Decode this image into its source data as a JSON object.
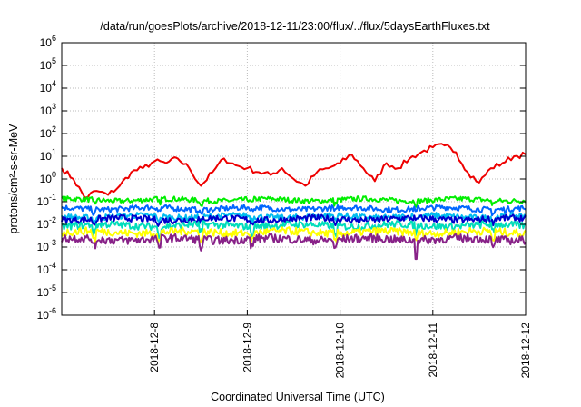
{
  "chart_data": {
    "type": "line",
    "title": "/data/run/goesPlots/archive/2018-12-11/23:00/flux/../flux/5daysEarthFluxes.txt",
    "xlabel": "Coordinated Universal Time (UTC)",
    "ylabel": "protons/cm²-s-sr-MeV",
    "yscale": "log",
    "ylim": [
      1e-06,
      1000000.0
    ],
    "xlim": [
      "2018-12-07",
      "2018-12-12"
    ],
    "grid": true,
    "y_ticks": [
      {
        "base": "10",
        "exp": "-6"
      },
      {
        "base": "10",
        "exp": "-5"
      },
      {
        "base": "10",
        "exp": "-4"
      },
      {
        "base": "10",
        "exp": "-3"
      },
      {
        "base": "10",
        "exp": "-2"
      },
      {
        "base": "10",
        "exp": "-1"
      },
      {
        "base": "10",
        "exp": "0"
      },
      {
        "base": "10",
        "exp": "1"
      },
      {
        "base": "10",
        "exp": "2"
      },
      {
        "base": "10",
        "exp": "3"
      },
      {
        "base": "10",
        "exp": "4"
      },
      {
        "base": "10",
        "exp": "5"
      },
      {
        "base": "10",
        "exp": "6"
      }
    ],
    "x_ticks": [
      "2018-12-8",
      "2018-12-9",
      "2018-12-10",
      "2018-12-11",
      "2018-12-12"
    ],
    "series": [
      {
        "color": "#ee0000",
        "x": [
          "2018-12-07 00:00",
          "2018-12-07 03:00",
          "2018-12-07 06:00",
          "2018-12-07 09:00",
          "2018-12-07 12:00",
          "2018-12-07 15:00",
          "2018-12-07 18:00",
          "2018-12-07 21:00",
          "2018-12-08 00:00",
          "2018-12-08 03:00",
          "2018-12-08 06:00",
          "2018-12-08 09:00",
          "2018-12-08 12:00",
          "2018-12-08 15:00",
          "2018-12-08 18:00",
          "2018-12-08 21:00",
          "2018-12-09 00:00",
          "2018-12-09 03:00",
          "2018-12-09 06:00",
          "2018-12-09 09:00",
          "2018-12-09 12:00",
          "2018-12-09 15:00",
          "2018-12-09 18:00",
          "2018-12-09 21:00",
          "2018-12-10 00:00",
          "2018-12-10 03:00",
          "2018-12-10 06:00",
          "2018-12-10 09:00",
          "2018-12-10 12:00",
          "2018-12-10 15:00",
          "2018-12-10 18:00",
          "2018-12-10 21:00",
          "2018-12-11 00:00",
          "2018-12-11 03:00",
          "2018-12-11 06:00",
          "2018-12-11 09:00",
          "2018-12-11 12:00",
          "2018-12-11 15:00",
          "2018-12-11 18:00",
          "2018-12-11 21:00",
          "2018-12-12 00:00"
        ],
        "y": [
          3.0,
          1.0,
          0.15,
          0.3,
          0.2,
          0.5,
          2.0,
          3.0,
          6.0,
          5.0,
          8.0,
          3.0,
          0.5,
          2.0,
          8.0,
          4.0,
          3.0,
          2.0,
          1.5,
          3.0,
          1.0,
          0.5,
          2.0,
          3.0,
          5.0,
          12.0,
          3.0,
          0.8,
          5.0,
          3.0,
          8.0,
          15.0,
          25.0,
          30.0,
          15.0,
          2.0,
          0.7,
          3.0,
          5.0,
          10.0,
          12.0
        ]
      },
      {
        "color": "#00ee00",
        "base": 0.12,
        "x": [
          "2018-12-07 00:00",
          "2018-12-12 00:00"
        ]
      },
      {
        "color": "#0066ff",
        "base": 0.05,
        "x": [
          "2018-12-07 00:00",
          "2018-12-12 00:00"
        ]
      },
      {
        "color": "#00bbee",
        "base": 0.022,
        "x": [
          "2018-12-07 00:00",
          "2018-12-12 00:00"
        ]
      },
      {
        "color": "#0000cc",
        "base": 0.017,
        "x": [
          "2018-12-07 00:00",
          "2018-12-12 00:00"
        ]
      },
      {
        "color": "#00ddbb",
        "base": 0.009,
        "x": [
          "2018-12-07 00:00",
          "2018-12-12 00:00"
        ]
      },
      {
        "color": "#ffff00",
        "base": 0.0045,
        "x": [
          "2018-12-07 00:00",
          "2018-12-12 00:00"
        ]
      },
      {
        "color": "#882288",
        "base": 0.0022,
        "x": [
          "2018-12-07 00:00",
          "2018-12-12 00:00"
        ]
      }
    ]
  }
}
